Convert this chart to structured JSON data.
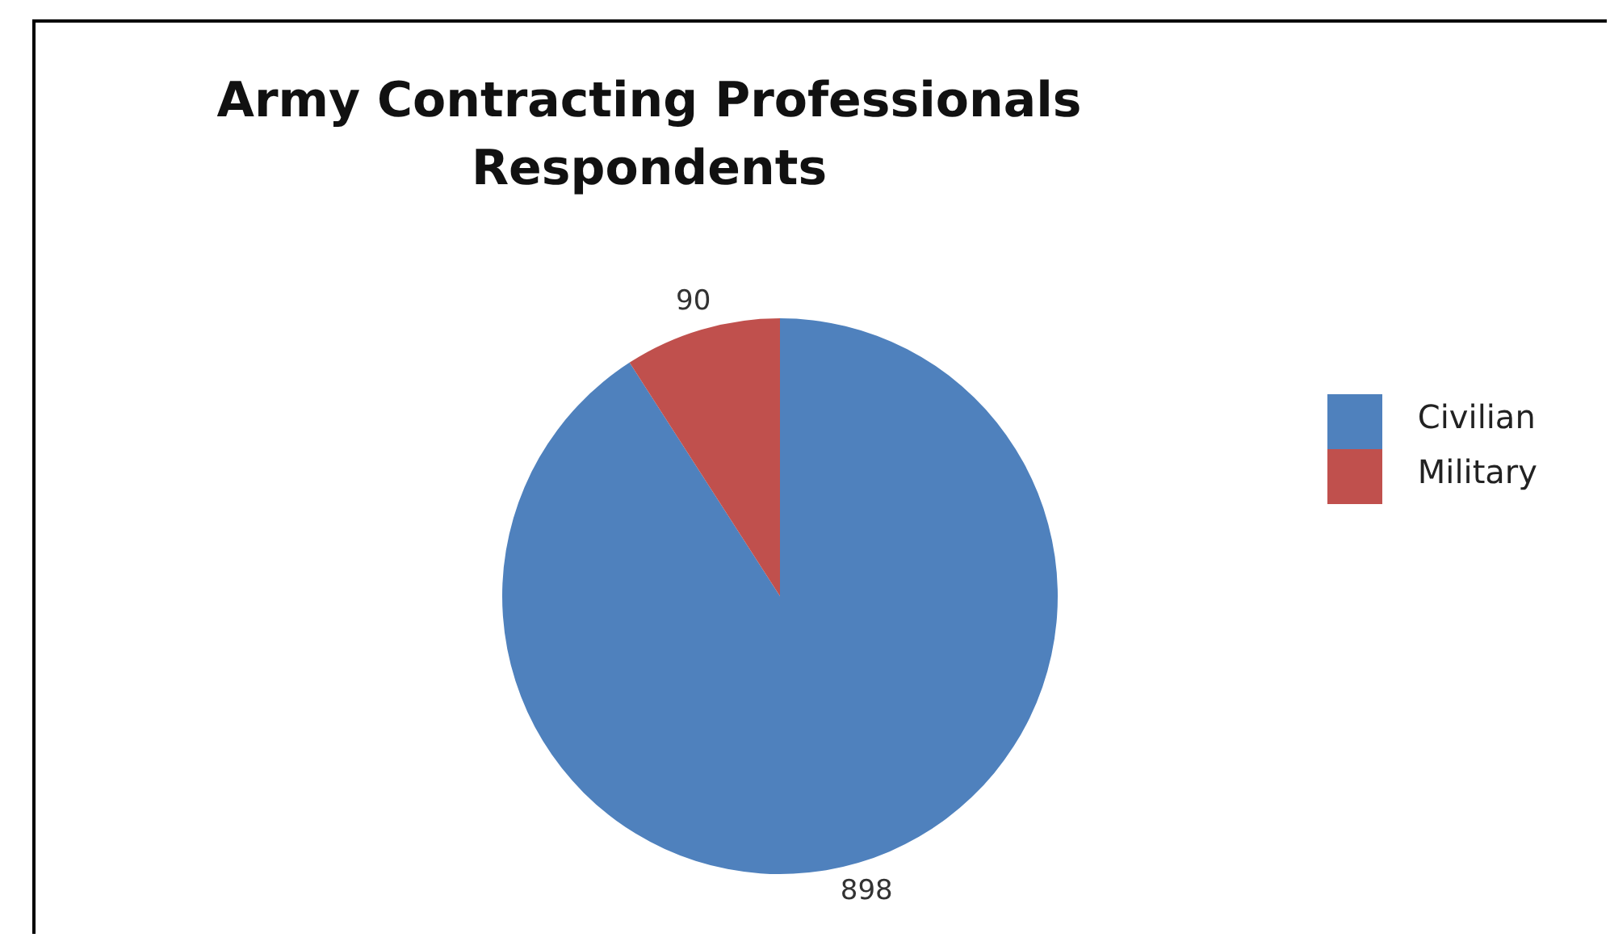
{
  "chart_data": {
    "type": "pie",
    "title": "Army Contracting Professionals Respondents",
    "categories": [
      "Civilian",
      "Military"
    ],
    "values": [
      898,
      90
    ],
    "colors": [
      "#4f81bd",
      "#c0504d"
    ],
    "data_labels": true,
    "legend": "right"
  }
}
